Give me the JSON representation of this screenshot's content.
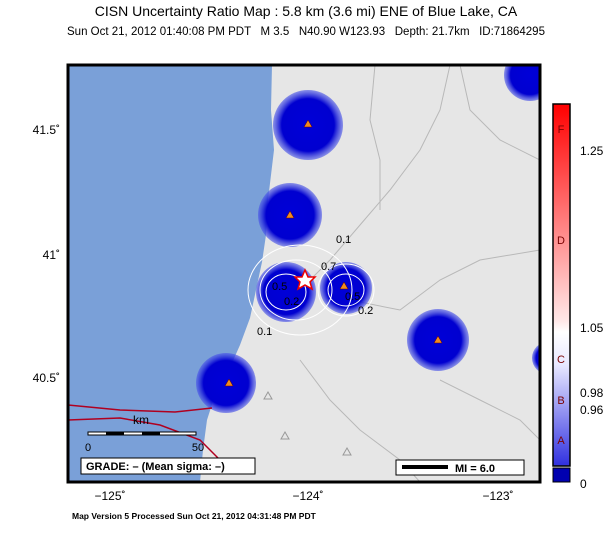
{
  "header": {
    "title": "CISN Uncertainty Ratio Map : 5.8 km (3.6 mi) ENE of Blue Lake, CA",
    "subtitle": "Sun Oct 21, 2012 01:40:08 PM PDT   M 3.5   N40.90 W123.93   Depth: 21.7km   ID:71864295"
  },
  "map": {
    "lat_labels": [
      "41.5˚",
      "41˚",
      "40.5˚"
    ],
    "lon_labels": [
      "−125˚",
      "−124˚",
      "−123˚"
    ],
    "contour_labels": [
      "0.1",
      "0.1",
      "0.7",
      "0.5",
      "0.2",
      "0.5",
      "0.2"
    ],
    "scale_bar": {
      "unit": "km",
      "labels": [
        "0",
        "50"
      ]
    },
    "grade": "GRADE: – (Mean sigma: –)",
    "intensity_key": "MI = 6.0"
  },
  "legend": {
    "letters": [
      "F",
      "D",
      "C",
      "B",
      "A"
    ],
    "values": [
      "1.25",
      "1.05",
      "0.98",
      "0.96",
      "0"
    ]
  },
  "footer": "Map Version 5 Processed Sun Oct 21, 2012 04:31:48 PM PDT"
}
